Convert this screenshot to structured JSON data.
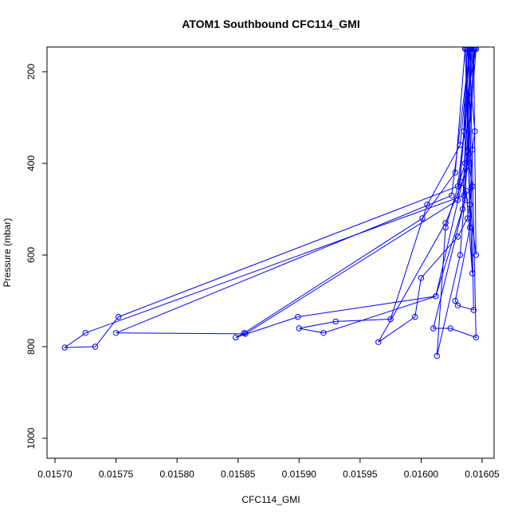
{
  "chart_data": {
    "type": "line",
    "title": "ATOM1 Southbound CFC114_GMI",
    "xlabel": "CFC114_GMI",
    "ylabel": "Pressure (mbar)",
    "xlim": [
      0.015695,
      0.016055
    ],
    "ylim": [
      1040,
      150
    ],
    "y_reversed": true,
    "xticks": [
      0.0157,
      0.01575,
      0.0158,
      0.01585,
      0.0159,
      0.01595,
      0.016,
      0.01605
    ],
    "xtick_labels": [
      "0.01570",
      "0.01575",
      "0.01580",
      "0.01585",
      "0.01590",
      "0.01595",
      "0.01600",
      "0.01605"
    ],
    "yticks": [
      200,
      400,
      600,
      800,
      1000
    ],
    "ytick_labels": [
      "200",
      "400",
      "600",
      "800",
      "1000"
    ],
    "series_color": "#0000ff",
    "marker": "open-circle",
    "grid": false,
    "legend": "none",
    "series": [
      {
        "x": [
          0.016038,
          0.016035,
          0.016042,
          0.016038,
          0.01603,
          0.016,
          0.015995,
          0.015965,
          0.01602,
          0.01604,
          0.016038,
          0.016045
        ],
        "y": [
          150,
          330,
          450,
          520,
          560,
          650,
          735,
          790,
          530,
          400,
          250,
          150
        ]
      },
      {
        "x": [
          0.01604,
          0.016032,
          0.016005,
          0.015975,
          0.01593,
          0.0159,
          0.01592,
          0.016012,
          0.016036,
          0.016041
        ],
        "y": [
          150,
          360,
          490,
          740,
          745,
          760,
          770,
          690,
          480,
          150
        ]
      },
      {
        "x": [
          0.016036,
          0.016028,
          0.016001,
          0.015855,
          0.015848,
          0.015899,
          0.016012,
          0.016039,
          0.016043
        ],
        "y": [
          150,
          420,
          520,
          770,
          780,
          735,
          690,
          380,
          150
        ]
      },
      {
        "x": [
          0.016043,
          0.01603,
          0.015752,
          0.015733,
          0.015708,
          0.015725,
          0.016035,
          0.016044
        ],
        "y": [
          150,
          450,
          735,
          800,
          802,
          770,
          470,
          150
        ]
      },
      {
        "x": [
          0.01604,
          0.016025,
          0.01575,
          0.015856,
          0.01603,
          0.016042
        ],
        "y": [
          150,
          470,
          770,
          772,
          480,
          150
        ]
      },
      {
        "x": [
          0.016039,
          0.016034,
          0.01601,
          0.016024,
          0.016045,
          0.01604
        ],
        "y": [
          150,
          500,
          760,
          760,
          780,
          150
        ]
      },
      {
        "x": [
          0.016037,
          0.01604,
          0.016028,
          0.01603,
          0.016043,
          0.016039
        ],
        "y": [
          150,
          540,
          700,
          710,
          720,
          150
        ]
      },
      {
        "x": [
          0.016041,
          0.016036,
          0.01602,
          0.016013,
          0.016032,
          0.016045
        ],
        "y": [
          150,
          400,
          540,
          820,
          600,
          150
        ]
      },
      {
        "x": [
          0.016038,
          0.016044,
          0.016042,
          0.01604,
          0.016045,
          0.016043
        ],
        "y": [
          150,
          330,
          370,
          490,
          600,
          150
        ]
      },
      {
        "x": [
          0.01604,
          0.016032,
          0.016037,
          0.016042,
          0.016036
        ],
        "y": [
          150,
          440,
          460,
          640,
          150
        ]
      }
    ]
  }
}
